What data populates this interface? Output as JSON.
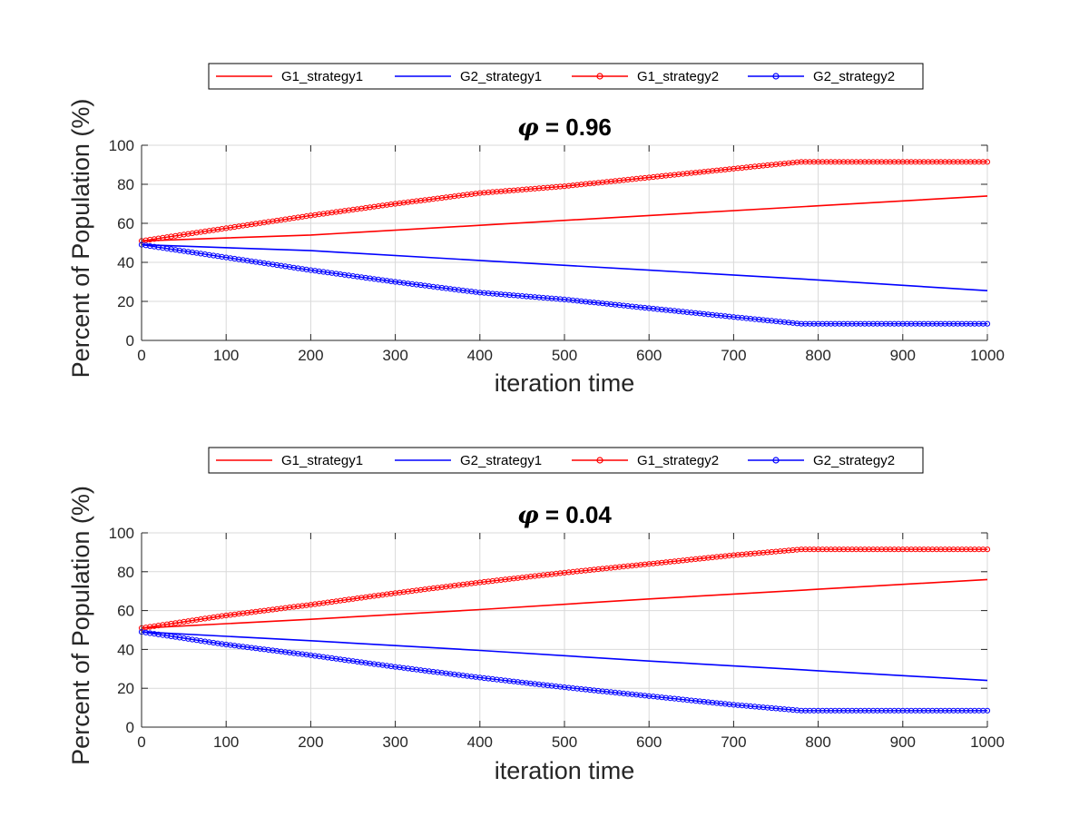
{
  "colors": {
    "red": "#ff0000",
    "blue": "#0000ff",
    "grid": "#d9d9d9",
    "axis": "#262626"
  },
  "chart_data": [
    {
      "type": "line",
      "title_symbol": "φ",
      "title": " = 0.96",
      "xlabel": "iteration time",
      "ylabel": "Percent of Population (%)",
      "xlim": [
        0,
        1000
      ],
      "ylim": [
        0,
        100
      ],
      "x_ticks": [
        "0",
        "100",
        "200",
        "300",
        "400",
        "500",
        "600",
        "700",
        "800",
        "900",
        "1000"
      ],
      "y_ticks": [
        "0",
        "20",
        "40",
        "60",
        "80",
        "100"
      ],
      "grid": true,
      "legend": "top, horizontal",
      "series": [
        {
          "name": "G1_strategy1",
          "color": "#ff0000",
          "marker": false,
          "x": [
            0,
            200,
            400,
            600,
            800,
            1000
          ],
          "values": [
            51,
            54,
            59,
            64,
            69,
            74
          ]
        },
        {
          "name": "G2_strategy1",
          "color": "#0000ff",
          "marker": false,
          "x": [
            0,
            200,
            400,
            600,
            800,
            1000
          ],
          "values": [
            49,
            46,
            41,
            36,
            31,
            25.5
          ]
        },
        {
          "name": "G1_strategy2",
          "color": "#ff0000",
          "marker": true,
          "x": [
            0,
            100,
            200,
            300,
            400,
            500,
            600,
            700,
            780,
            800,
            900,
            1000
          ],
          "values": [
            51,
            57.5,
            64,
            70,
            75.5,
            79,
            83.5,
            88,
            91.5,
            91.5,
            91.5,
            91.5
          ]
        },
        {
          "name": "G2_strategy2",
          "color": "#0000ff",
          "marker": true,
          "x": [
            0,
            100,
            200,
            300,
            400,
            500,
            600,
            700,
            780,
            800,
            900,
            1000
          ],
          "values": [
            49,
            42.5,
            36,
            30,
            24.5,
            21,
            16.5,
            12,
            8.5,
            8.5,
            8.5,
            8.5
          ]
        }
      ]
    },
    {
      "type": "line",
      "title_symbol": "φ",
      "title": " = 0.04",
      "xlabel": "iteration time",
      "ylabel": "Percent of Population (%)",
      "xlim": [
        0,
        1000
      ],
      "ylim": [
        0,
        100
      ],
      "x_ticks": [
        "0",
        "100",
        "200",
        "300",
        "400",
        "500",
        "600",
        "700",
        "800",
        "900",
        "1000"
      ],
      "y_ticks": [
        "0",
        "20",
        "40",
        "60",
        "80",
        "100"
      ],
      "grid": true,
      "legend": "top, horizontal",
      "series": [
        {
          "name": "G1_strategy1",
          "color": "#ff0000",
          "marker": false,
          "x": [
            0,
            200,
            400,
            600,
            800,
            1000
          ],
          "values": [
            51,
            55.5,
            60.5,
            66,
            71,
            76
          ]
        },
        {
          "name": "G2_strategy1",
          "color": "#0000ff",
          "marker": false,
          "x": [
            0,
            200,
            400,
            600,
            800,
            1000
          ],
          "values": [
            49,
            44.5,
            39.5,
            34,
            29,
            24
          ]
        },
        {
          "name": "G1_strategy2",
          "color": "#ff0000",
          "marker": true,
          "x": [
            0,
            100,
            200,
            300,
            400,
            500,
            600,
            700,
            780,
            800,
            900,
            1000
          ],
          "values": [
            51,
            57.5,
            63,
            69,
            74.5,
            79.5,
            84,
            88.5,
            91.5,
            91.5,
            91.5,
            91.5
          ]
        },
        {
          "name": "G2_strategy2",
          "color": "#0000ff",
          "marker": true,
          "x": [
            0,
            100,
            200,
            300,
            400,
            500,
            600,
            700,
            780,
            800,
            900,
            1000
          ],
          "values": [
            49,
            42.5,
            37,
            31,
            25.5,
            20.5,
            16,
            11.5,
            8.5,
            8.5,
            8.5,
            8.5
          ]
        }
      ]
    }
  ]
}
